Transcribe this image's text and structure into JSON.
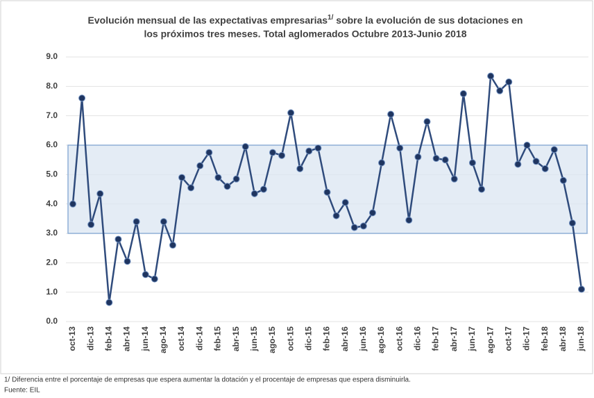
{
  "chart_data": {
    "type": "line",
    "title": {
      "line1": "Evolución mensual de las expectativas empresarias",
      "superscript": "1/",
      "line1_end": " sobre la evolución de sus dotaciones en",
      "line2": "los próximos tres meses. Total aglomerados Octubre 2013-Junio 2018"
    },
    "categories": [
      "oct-13",
      null,
      "dic-13",
      null,
      "feb-14",
      null,
      "abr-14",
      null,
      "jun-14",
      null,
      "ago-14",
      null,
      "oct-14",
      null,
      "dic-14",
      null,
      "feb-15",
      null,
      "abr-15",
      null,
      "jun-15",
      null,
      "ago-15",
      null,
      "oct-15",
      null,
      "dic-15",
      null,
      "feb-16",
      null,
      "abr-16",
      null,
      "jun-16",
      null,
      "ago-16",
      null,
      "oct-16",
      null,
      "dic-16",
      null,
      "feb-17",
      null,
      "abr-17",
      null,
      "jun-17",
      null,
      "ago-17",
      null,
      "oct-17",
      null,
      "dic-17",
      null,
      "feb-18",
      null,
      "abr-18",
      null,
      "jun-18"
    ],
    "values": [
      4.0,
      7.6,
      3.3,
      4.35,
      0.65,
      2.8,
      2.05,
      3.4,
      1.6,
      1.45,
      3.4,
      2.6,
      4.9,
      4.55,
      5.3,
      5.75,
      4.9,
      4.6,
      4.85,
      5.95,
      4.35,
      4.5,
      5.75,
      5.65,
      7.1,
      5.2,
      5.8,
      5.9,
      4.4,
      3.6,
      4.05,
      3.2,
      3.25,
      3.7,
      5.4,
      7.05,
      5.9,
      3.45,
      5.6,
      6.8,
      5.55,
      5.5,
      4.85,
      7.75,
      5.4,
      4.5,
      8.35,
      7.85,
      8.15,
      5.35,
      6.0,
      5.45,
      5.2,
      5.85,
      4.8,
      3.35,
      1.1
    ],
    "color": "#2f4b7c",
    "band": [
      3.0,
      6.0
    ],
    "band_color": "#dbe5f1",
    "ylim": [
      0,
      9
    ],
    "yticks": [
      {
        "value": 0,
        "label": "0.0"
      },
      {
        "value": 1,
        "label": "1.0"
      },
      {
        "value": 2,
        "label": "2.0"
      },
      {
        "value": 3,
        "label": "3.0"
      },
      {
        "value": 4,
        "label": "4.0"
      },
      {
        "value": 5,
        "label": "5.0"
      },
      {
        "value": 6,
        "label": "6.0"
      },
      {
        "value": 7,
        "label": "7.0"
      },
      {
        "value": 8,
        "label": "8.0"
      },
      {
        "value": 9,
        "label": "9.0"
      }
    ],
    "grid": true,
    "footnote": "1/ Diferencia entre el porcentaje de empresas que espera aumentar la dotación y el procentaje de empresas que espera disminuirla.",
    "source": "Fuente: EIL"
  }
}
